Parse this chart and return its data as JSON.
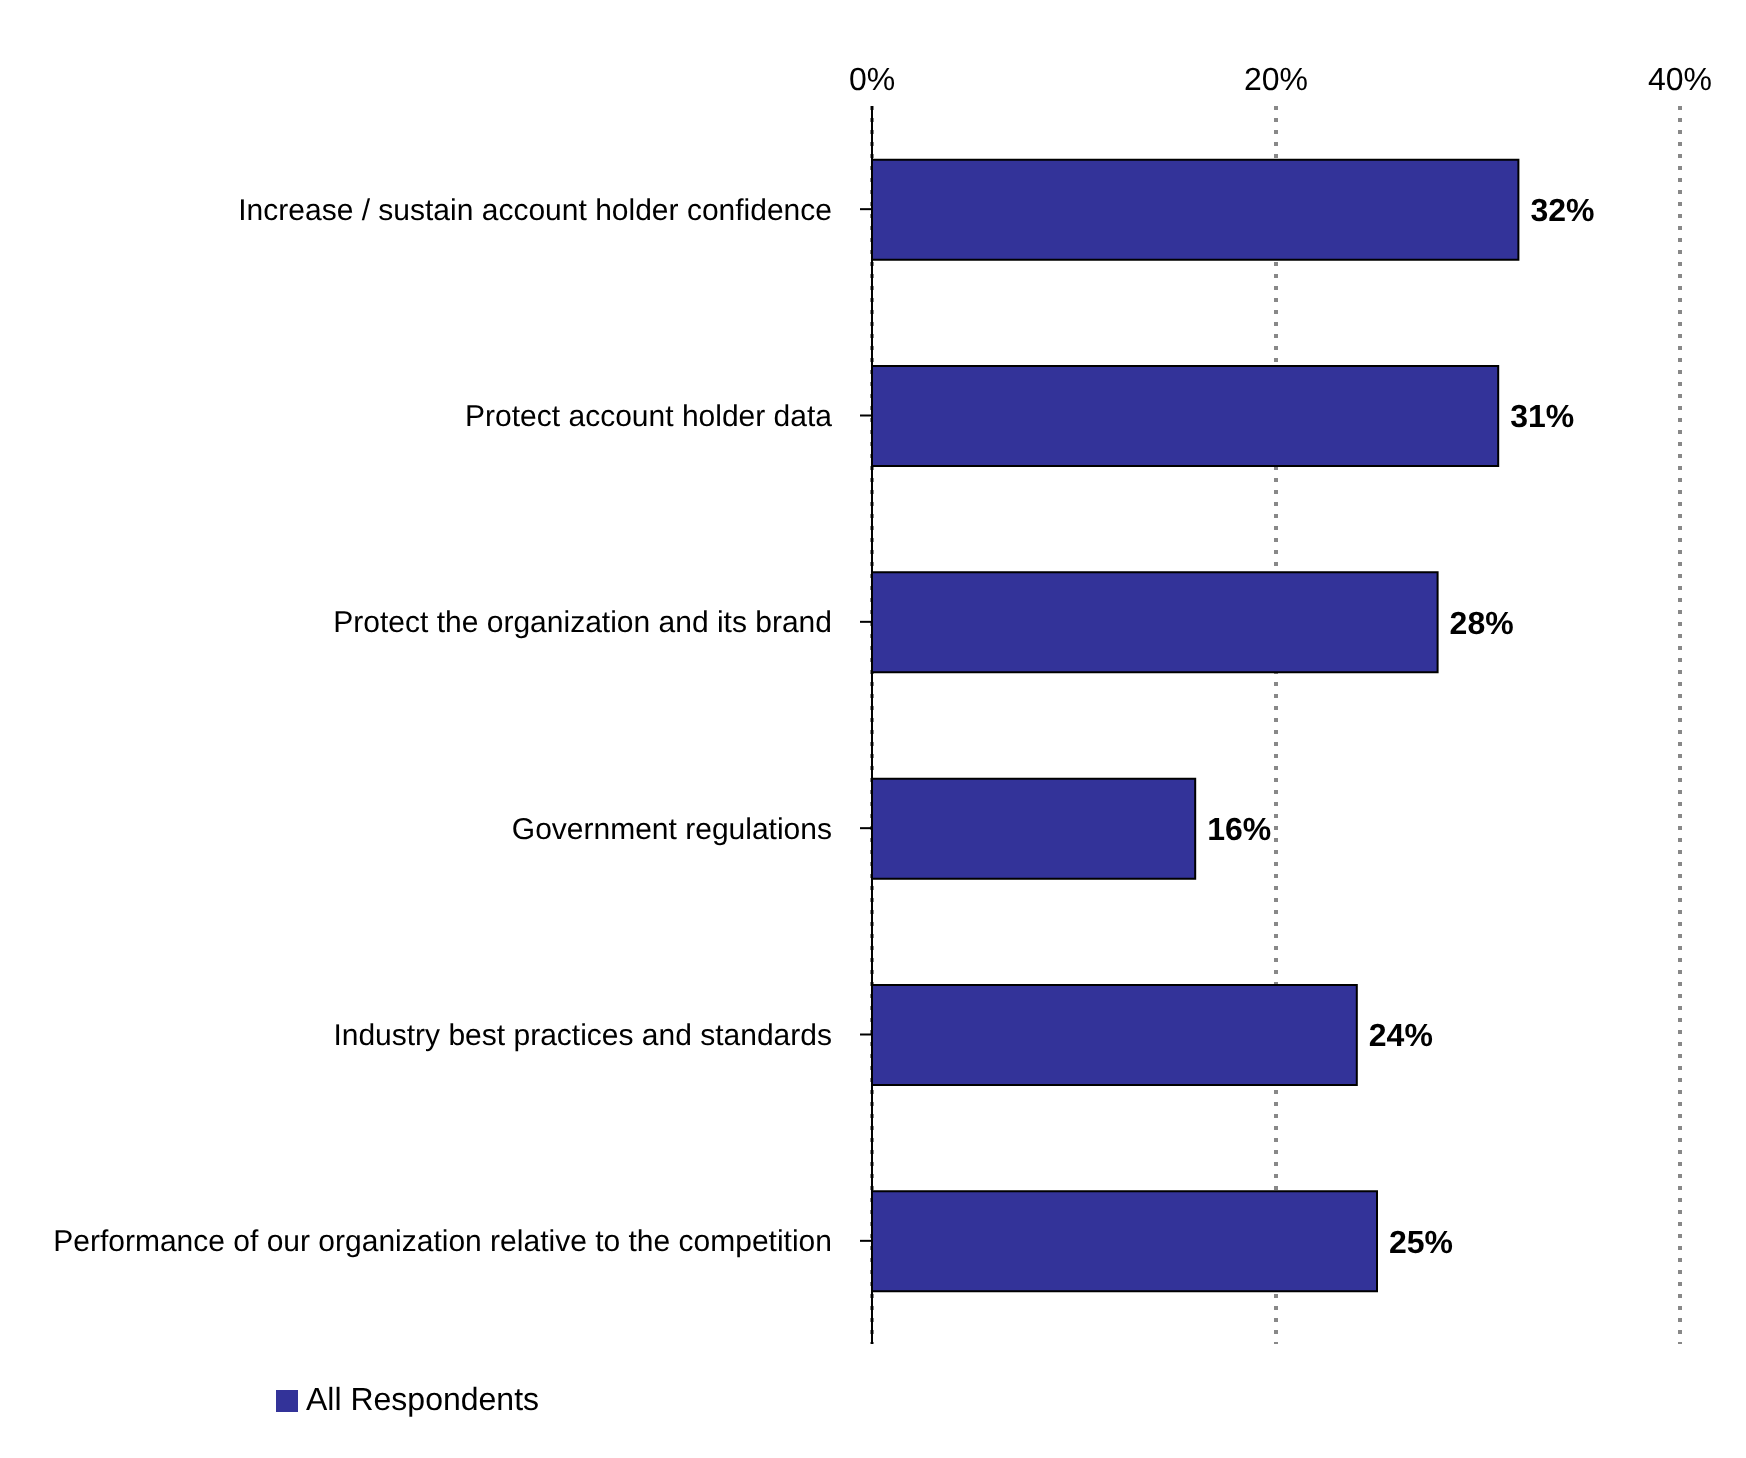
{
  "chart_data": {
    "type": "bar",
    "orientation": "horizontal",
    "categories": [
      "Increase / sustain account holder confidence",
      "Protect account holder data",
      "Protect the organization and its brand",
      "Government regulations",
      "Industry best practices and standards",
      "Performance of our organization relative to the competition"
    ],
    "series": [
      {
        "name": "All Respondents",
        "color": "#333399",
        "values": [
          32,
          31,
          28,
          16,
          24,
          25
        ],
        "value_labels": [
          "32%",
          "31%",
          "28%",
          "16%",
          "24%",
          "25%"
        ]
      }
    ],
    "xlim": [
      0,
      40
    ],
    "xticks": [
      {
        "value": 0,
        "label": "0%"
      },
      {
        "value": 20,
        "label": "20%"
      },
      {
        "value": 40,
        "label": "40%"
      }
    ],
    "grid": "x",
    "legend": "bottom left"
  }
}
